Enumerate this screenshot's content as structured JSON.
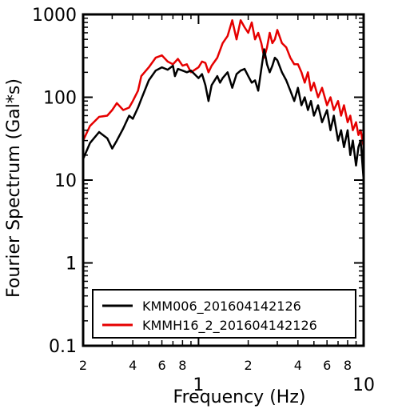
{
  "chart_data": {
    "type": "line",
    "xlabel": "Frequency (Hz)",
    "ylabel": "Fourier Spectrum (Gal*s)",
    "x_scale": "log",
    "y_scale": "log",
    "xlim": [
      0.2,
      10
    ],
    "ylim": [
      0.1,
      1000
    ],
    "x_major_ticks": [
      {
        "value": 1,
        "label": "1"
      },
      {
        "value": 10,
        "label": "10"
      }
    ],
    "x_minor_ticks": [
      {
        "value": 0.2,
        "label": "2"
      },
      {
        "value": 0.4,
        "label": "4"
      },
      {
        "value": 0.6,
        "label": "6"
      },
      {
        "value": 0.8,
        "label": "8"
      },
      {
        "value": 2,
        "label": "2"
      },
      {
        "value": 4,
        "label": "4"
      },
      {
        "value": 6,
        "label": "6"
      },
      {
        "value": 8,
        "label": "8"
      }
    ],
    "y_ticks": [
      {
        "value": 0.1,
        "label": "0.1"
      },
      {
        "value": 1,
        "label": "1"
      },
      {
        "value": 10,
        "label": "10"
      },
      {
        "value": 100,
        "label": "100"
      },
      {
        "value": 1000,
        "label": "1000"
      }
    ],
    "legend_position": "bottom-right",
    "grid": false,
    "series": [
      {
        "name": "KMM006_201604142126",
        "color": "#000000",
        "x": [
          0.2,
          0.22,
          0.25,
          0.28,
          0.3,
          0.32,
          0.35,
          0.38,
          0.4,
          0.43,
          0.45,
          0.5,
          0.55,
          0.6,
          0.65,
          0.7,
          0.72,
          0.75,
          0.8,
          0.85,
          0.9,
          1.0,
          1.05,
          1.1,
          1.15,
          1.2,
          1.3,
          1.35,
          1.4,
          1.5,
          1.6,
          1.7,
          1.8,
          1.9,
          2.0,
          2.1,
          2.2,
          2.3,
          2.4,
          2.5,
          2.6,
          2.7,
          2.8,
          2.9,
          3.0,
          3.2,
          3.4,
          3.6,
          3.8,
          4.0,
          4.2,
          4.4,
          4.6,
          4.8,
          5.0,
          5.3,
          5.6,
          6.0,
          6.3,
          6.6,
          7.0,
          7.3,
          7.6,
          8.0,
          8.3,
          8.6,
          9.0,
          9.3,
          9.6,
          10.0
        ],
        "y": [
          18,
          28,
          38,
          32,
          24,
          30,
          42,
          60,
          55,
          75,
          95,
          160,
          210,
          230,
          215,
          240,
          180,
          220,
          210,
          200,
          210,
          170,
          190,
          140,
          90,
          140,
          180,
          150,
          170,
          200,
          130,
          190,
          210,
          220,
          180,
          150,
          160,
          120,
          220,
          380,
          250,
          200,
          240,
          300,
          280,
          200,
          160,
          120,
          90,
          130,
          80,
          100,
          70,
          90,
          60,
          80,
          50,
          70,
          40,
          60,
          30,
          40,
          25,
          40,
          20,
          30,
          15,
          25,
          30,
          10
        ]
      },
      {
        "name": "KMMH16_2_201604142126",
        "color": "#e60000",
        "x": [
          0.2,
          0.22,
          0.25,
          0.28,
          0.3,
          0.32,
          0.35,
          0.38,
          0.4,
          0.43,
          0.45,
          0.5,
          0.55,
          0.6,
          0.65,
          0.7,
          0.75,
          0.8,
          0.85,
          0.9,
          1.0,
          1.05,
          1.1,
          1.15,
          1.2,
          1.3,
          1.4,
          1.5,
          1.6,
          1.7,
          1.8,
          1.9,
          2.0,
          2.1,
          2.2,
          2.3,
          2.4,
          2.5,
          2.6,
          2.7,
          2.8,
          2.9,
          3.0,
          3.2,
          3.4,
          3.6,
          3.8,
          4.0,
          4.2,
          4.4,
          4.6,
          4.8,
          5.0,
          5.3,
          5.6,
          6.0,
          6.3,
          6.6,
          7.0,
          7.3,
          7.6,
          8.0,
          8.3,
          8.6,
          9.0,
          9.3,
          9.6,
          10.0
        ],
        "y": [
          30,
          45,
          58,
          60,
          70,
          85,
          70,
          75,
          90,
          120,
          180,
          230,
          300,
          320,
          270,
          250,
          290,
          240,
          250,
          200,
          230,
          270,
          260,
          200,
          240,
          300,
          450,
          550,
          850,
          500,
          850,
          700,
          600,
          800,
          500,
          600,
          450,
          300,
          400,
          600,
          450,
          500,
          650,
          450,
          400,
          300,
          250,
          250,
          200,
          150,
          200,
          120,
          150,
          100,
          130,
          80,
          100,
          70,
          90,
          60,
          80,
          50,
          60,
          40,
          50,
          35,
          40,
          25
        ]
      }
    ]
  }
}
